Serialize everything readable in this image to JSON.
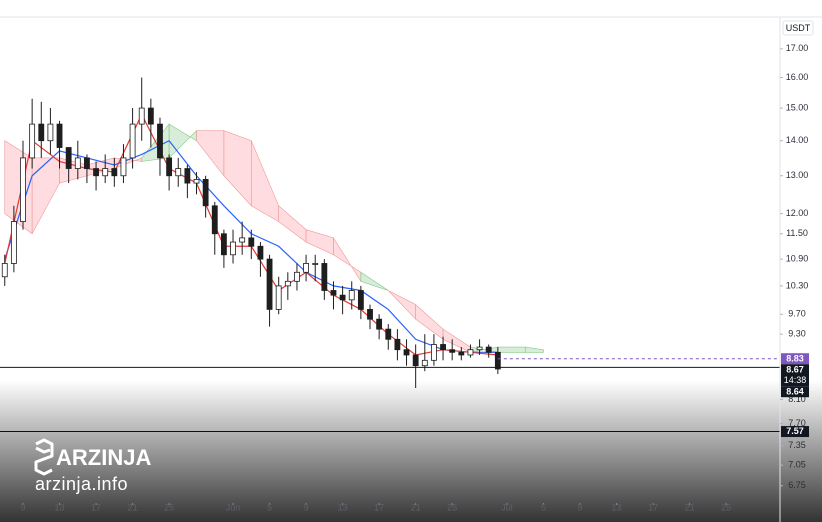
{
  "chart_data": {
    "type": "candlestick",
    "axis_unit": "USDT",
    "log_y": true,
    "color": "#1e1e1e",
    "x": [
      7,
      8,
      9,
      10,
      11,
      12,
      13,
      14,
      15,
      16,
      17,
      18,
      19,
      20,
      21,
      22,
      23,
      24,
      25,
      26,
      27,
      28,
      29,
      30,
      31,
      32,
      33,
      34,
      35,
      36,
      37,
      38,
      39,
      40,
      41,
      42,
      43,
      44,
      45,
      46,
      47,
      48,
      49,
      50,
      51,
      52,
      53,
      54,
      55,
      56,
      57,
      58,
      59,
      60,
      61
    ],
    "open": [
      10.5,
      10.8,
      11.8,
      13.5,
      14.5,
      14.0,
      14.5,
      13.8,
      13.2,
      13.5,
      13.2,
      13.0,
      13.2,
      13.0,
      13.5,
      14.5,
      15.0,
      14.5,
      13.5,
      13.0,
      13.2,
      12.8,
      12.9,
      12.2,
      11.5,
      11.0,
      11.3,
      11.4,
      11.2,
      10.9,
      9.8,
      10.3,
      10.4,
      10.6,
      10.8,
      10.8,
      10.2,
      10.1,
      10.0,
      10.2,
      9.8,
      9.6,
      9.4,
      9.2,
      9.0,
      8.9,
      8.7,
      8.8,
      9.1,
      9.0,
      8.95,
      8.9,
      9.0,
      9.05,
      8.95
    ],
    "high": [
      11.0,
      12.2,
      14.0,
      15.3,
      15.2,
      15.0,
      14.6,
      13.8,
      14.0,
      13.6,
      13.4,
      13.6,
      13.5,
      13.9,
      15.0,
      16.0,
      15.3,
      14.7,
      13.6,
      13.5,
      13.3,
      13.1,
      13.0,
      12.3,
      11.6,
      11.6,
      11.8,
      11.6,
      11.3,
      11.0,
      10.5,
      10.6,
      10.8,
      11.0,
      11.0,
      10.9,
      10.4,
      10.3,
      10.4,
      10.3,
      9.9,
      9.7,
      9.5,
      9.4,
      9.2,
      9.1,
      9.3,
      9.3,
      9.25,
      9.2,
      9.05,
      9.1,
      9.2,
      9.1,
      9.05
    ],
    "low": [
      10.3,
      10.6,
      11.6,
      13.2,
      13.5,
      13.6,
      13.2,
      12.8,
      12.9,
      12.8,
      12.6,
      12.8,
      12.7,
      12.8,
      13.2,
      14.0,
      13.8,
      13.0,
      12.6,
      12.7,
      12.4,
      12.5,
      11.9,
      11.0,
      10.7,
      10.8,
      11.0,
      10.9,
      10.5,
      9.45,
      9.7,
      10.0,
      10.2,
      10.4,
      10.4,
      10.0,
      9.8,
      9.7,
      9.8,
      9.6,
      9.4,
      9.2,
      9.0,
      8.8,
      8.7,
      8.3,
      8.6,
      8.7,
      8.8,
      8.8,
      8.8,
      8.85,
      8.9,
      8.85,
      8.55
    ],
    "close": [
      10.8,
      11.8,
      13.5,
      14.5,
      14.0,
      14.5,
      13.8,
      13.2,
      13.5,
      13.2,
      13.0,
      13.2,
      13.0,
      13.5,
      14.5,
      15.0,
      14.5,
      13.5,
      13.0,
      13.2,
      12.8,
      12.9,
      12.2,
      11.5,
      11.0,
      11.3,
      11.4,
      11.2,
      10.9,
      9.8,
      10.3,
      10.4,
      10.6,
      10.8,
      10.8,
      10.2,
      10.1,
      10.0,
      10.2,
      9.8,
      9.6,
      9.4,
      9.2,
      9.0,
      8.9,
      8.7,
      8.8,
      9.1,
      9.0,
      8.95,
      8.9,
      9.0,
      9.05,
      8.95,
      8.64
    ],
    "overlays": {
      "lines": [
        {
          "color": "#2962ff",
          "x": [
            7,
            10,
            13,
            16,
            19,
            22,
            25,
            28,
            31,
            34,
            37,
            40,
            43,
            46,
            49,
            52,
            55,
            58,
            61
          ],
          "values": [
            10.9,
            13.0,
            13.7,
            13.5,
            13.3,
            13.6,
            14.0,
            13.0,
            12.2,
            11.5,
            11.2,
            10.6,
            10.3,
            10.2,
            9.8,
            9.2,
            9.0,
            8.95,
            8.95
          ]
        },
        {
          "color": "#e53935",
          "x": [
            7,
            10,
            13,
            16,
            19,
            22,
            25,
            28,
            31,
            34,
            37,
            40,
            43,
            46,
            49,
            52,
            55,
            58,
            61
          ],
          "values": [
            10.8,
            14.0,
            13.4,
            13.2,
            13.1,
            14.8,
            13.2,
            12.8,
            11.2,
            11.2,
            10.2,
            10.6,
            10.1,
            9.8,
            9.3,
            8.9,
            9.0,
            8.95,
            8.9
          ]
        }
      ],
      "cloud": {
        "up_color": "#c8e6c9",
        "down_color": "#ffcdd2",
        "x": [
          7,
          10,
          13,
          16,
          19,
          22,
          25,
          28,
          31,
          34,
          37,
          40,
          43,
          46,
          49,
          52,
          55,
          58,
          61,
          64,
          66
        ],
        "span_a": [
          12.0,
          11.5,
          12.8,
          13.0,
          13.2,
          13.5,
          14.5,
          14.0,
          13.0,
          12.2,
          11.8,
          11.3,
          11.0,
          10.6,
          10.2,
          9.6,
          9.2,
          8.95,
          9.05,
          9.05,
          9.0
        ],
        "span_b": [
          14.0,
          13.5,
          13.5,
          13.3,
          13.5,
          13.4,
          13.5,
          14.3,
          14.3,
          14.0,
          12.2,
          11.6,
          11.4,
          10.4,
          10.2,
          9.9,
          9.4,
          9.05,
          8.95,
          8.95,
          8.95
        ]
      }
    },
    "price_levels": [
      {
        "value": 8.83,
        "color": "#7e57c2",
        "line": "dashed"
      },
      {
        "value": 8.67,
        "color": "#131722",
        "line": "solid",
        "countdown": "14:38"
      },
      {
        "value": 8.64,
        "color": "#131722"
      },
      {
        "value": 7.57,
        "color": "#131722",
        "line": "solid"
      }
    ],
    "ylim": [
      6.55,
      18.07
    ],
    "yticks": [
      {
        "value": 17,
        "label": "17.00"
      },
      {
        "value": 16,
        "label": "16.00"
      },
      {
        "value": 15,
        "label": "15.00"
      },
      {
        "value": 14,
        "label": "14.00"
      },
      {
        "value": 13,
        "label": "13.00"
      },
      {
        "value": 12,
        "label": "12.00"
      },
      {
        "value": 11.5,
        "label": "11.50"
      },
      {
        "value": 10.9,
        "label": "10.90"
      },
      {
        "value": 10.3,
        "label": "10.30"
      },
      {
        "value": 9.7,
        "label": "9.70"
      },
      {
        "value": 9.3,
        "label": "9.30"
      },
      {
        "value": 8.1,
        "label": "8.10"
      },
      {
        "value": 7.7,
        "label": "7.70"
      },
      7.35,
      7.05,
      6.75
    ],
    "xlim": [
      6.48,
      91.9
    ],
    "xticks": [
      {
        "value": 9,
        "label": "9"
      },
      {
        "value": 13,
        "label": "13"
      },
      {
        "value": 17,
        "label": "17"
      },
      {
        "value": 21,
        "label": "21"
      },
      {
        "value": 25,
        "label": "25"
      },
      {
        "value": 32,
        "label": "Jun"
      },
      {
        "value": 36,
        "label": "5"
      },
      {
        "value": 40,
        "label": "9"
      },
      {
        "value": 44,
        "label": "13"
      },
      {
        "value": 48,
        "label": "17"
      },
      {
        "value": 52,
        "label": "21"
      },
      {
        "value": 56,
        "label": "25"
      },
      {
        "value": 62,
        "label": "Jul"
      },
      {
        "value": 66,
        "label": "5"
      },
      {
        "value": 70,
        "label": "9"
      },
      {
        "value": 74,
        "label": "13"
      },
      {
        "value": 78,
        "label": "17"
      },
      {
        "value": 82,
        "label": "21"
      },
      {
        "value": 86,
        "label": "25"
      }
    ]
  },
  "watermark": {
    "brand": "ARZINJA",
    "url": "arzinja.info"
  }
}
